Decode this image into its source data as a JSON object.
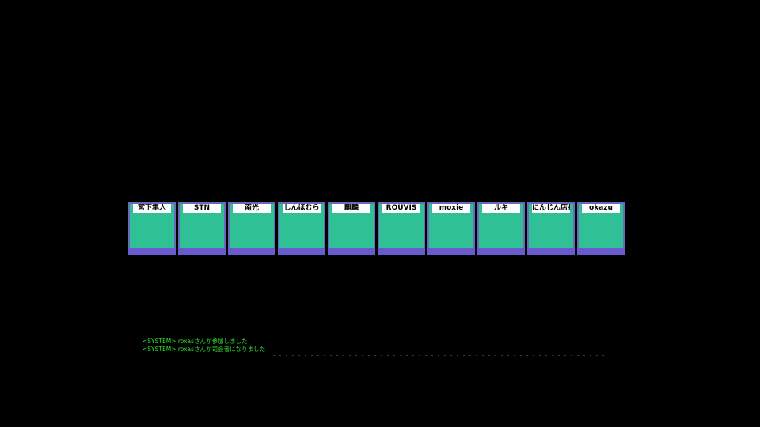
{
  "players": [
    {
      "name": "宮下隼人"
    },
    {
      "name": "STN"
    },
    {
      "name": "南光"
    },
    {
      "name": "しんほむら"
    },
    {
      "name": "麒麟"
    },
    {
      "name": "ROUVIS"
    },
    {
      "name": "moxie"
    },
    {
      "name": "ルキ"
    },
    {
      "name": "にんじん店長"
    },
    {
      "name": "okazu"
    }
  ],
  "chat": {
    "lines": [
      "<SYSTEM> roxasさんが参加しました",
      "<SYSTEM> roxasさんが司会者になりました"
    ]
  },
  "colors": {
    "background": "#000000",
    "card_fill": "#2fc195",
    "card_border": "#6a6ab8",
    "card_bottom": "#6a5ad0",
    "chat_text": "#33dd33"
  }
}
